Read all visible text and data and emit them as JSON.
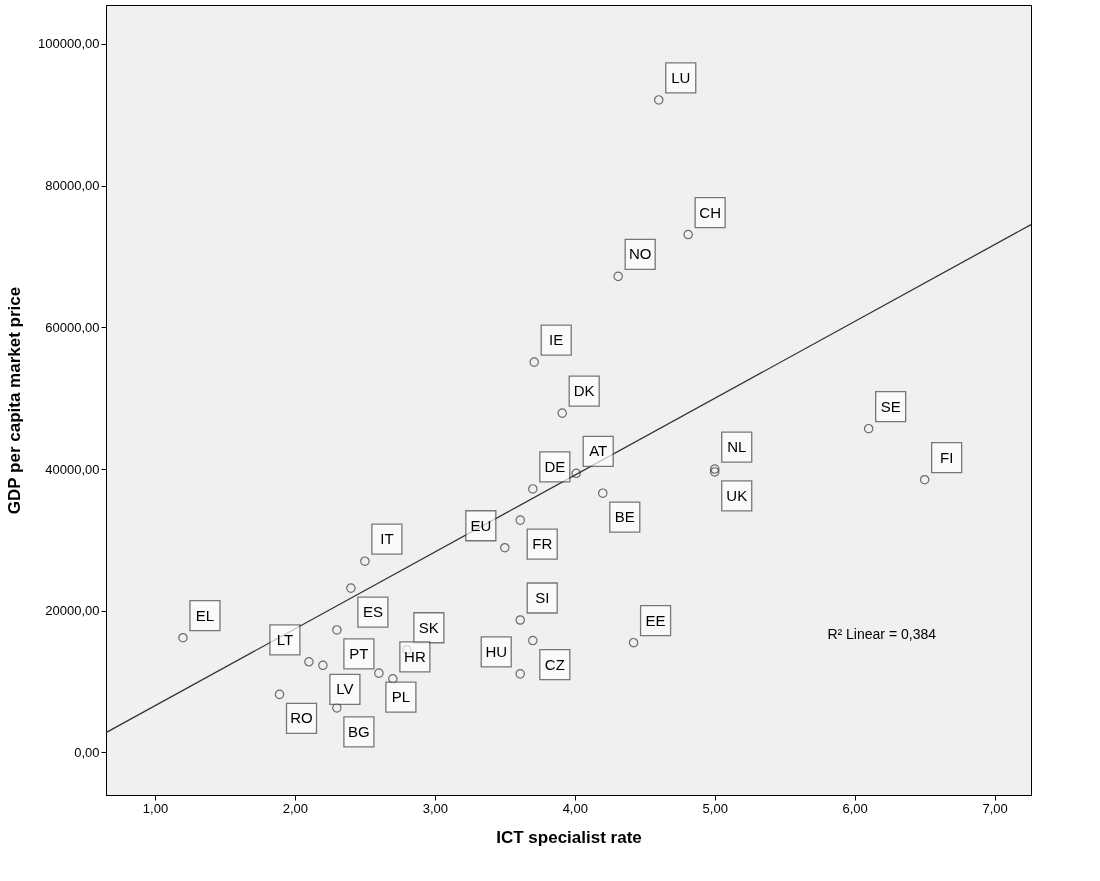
{
  "chart_data": {
    "type": "scatter",
    "xlabel": "ICT specialist rate",
    "ylabel": "GDP per capita market price",
    "xlim": [
      0.65,
      7.26
    ],
    "ylim": [
      -6000,
      105500
    ],
    "xticks": [
      {
        "value": 1,
        "label": "1,00"
      },
      {
        "value": 2,
        "label": "2,00"
      },
      {
        "value": 3,
        "label": "3,00"
      },
      {
        "value": 4,
        "label": "4,00"
      },
      {
        "value": 5,
        "label": "5,00"
      },
      {
        "value": 6,
        "label": "6,00"
      },
      {
        "value": 7,
        "label": "7,00"
      }
    ],
    "yticks": [
      {
        "value": 0,
        "label": "0,00"
      },
      {
        "value": 20000,
        "label": "20000,00"
      },
      {
        "value": 40000,
        "label": "40000,00"
      },
      {
        "value": 60000,
        "label": "60000,00"
      },
      {
        "value": 80000,
        "label": "80000,00"
      },
      {
        "value": 100000,
        "label": "100000,00"
      }
    ],
    "grid": false,
    "marker": "circle",
    "series": [
      {
        "type": "scatter",
        "color": "#333333",
        "x": [
          4.6,
          4.81,
          4.31,
          3.71,
          3.91,
          4.01,
          3.7,
          4.2,
          3.61,
          3.5,
          2.5,
          2.4,
          2.3,
          1.2,
          2.8,
          3.61,
          3.7,
          4.42,
          2.1,
          2.2,
          1.89,
          2.6,
          2.7,
          2.3,
          3.61,
          5.0,
          5.0,
          6.1,
          6.5
        ],
        "values": [
          92100,
          73100,
          67200,
          55100,
          47900,
          39400,
          37200,
          36600,
          32800,
          28900,
          27000,
          23200,
          17300,
          16200,
          14500,
          18700,
          15800,
          15500,
          12800,
          12300,
          8200,
          11200,
          10400,
          6300,
          11100,
          40000,
          39600,
          45700,
          38500
        ]
      },
      {
        "type": "line",
        "marker": "none",
        "color": "#333333",
        "x": [
          0.65,
          7.26
        ],
        "values": [
          2800,
          74500
        ]
      }
    ],
    "annotations": [
      {
        "text": "LU",
        "x": 4.6,
        "y": 92100
      },
      {
        "text": "CH",
        "x": 4.81,
        "y": 73100
      },
      {
        "text": "NO",
        "x": 4.31,
        "y": 67200
      },
      {
        "text": "IE",
        "x": 3.71,
        "y": 55100
      },
      {
        "text": "DK",
        "x": 3.91,
        "y": 47900
      },
      {
        "text": "AT",
        "x": 4.01,
        "y": 39400
      },
      {
        "text": "DE",
        "x": 3.7,
        "y": 37200
      },
      {
        "text": "BE",
        "x": 4.2,
        "y": 36600
      },
      {
        "text": "FR",
        "x": 3.61,
        "y": 32800
      },
      {
        "text": "EU",
        "x": 3.5,
        "y": 28900
      },
      {
        "text": "IT",
        "x": 2.5,
        "y": 27000
      },
      {
        "text": "ES",
        "x": 2.4,
        "y": 23200
      },
      {
        "text": "PT",
        "x": 2.3,
        "y": 17300
      },
      {
        "text": "EL",
        "x": 1.2,
        "y": 16200
      },
      {
        "text": "SK",
        "x": 2.8,
        "y": 14500
      },
      {
        "text": "SI",
        "x": 3.61,
        "y": 18700
      },
      {
        "text": "CZ",
        "x": 3.7,
        "y": 15800
      },
      {
        "text": "EE",
        "x": 4.42,
        "y": 15500
      },
      {
        "text": "LT",
        "x": 2.1,
        "y": 12800
      },
      {
        "text": "LV",
        "x": 2.2,
        "y": 12300
      },
      {
        "text": "RO",
        "x": 1.89,
        "y": 8200
      },
      {
        "text": "PL",
        "x": 2.6,
        "y": 11200
      },
      {
        "text": "HR",
        "x": 2.7,
        "y": 10400
      },
      {
        "text": "BG",
        "x": 2.3,
        "y": 6300
      },
      {
        "text": "HU",
        "x": 3.61,
        "y": 11100
      },
      {
        "text": "NL",
        "x": 5.0,
        "y": 40000
      },
      {
        "text": "UK",
        "x": 5.0,
        "y": 39600
      },
      {
        "text": "SE",
        "x": 6.1,
        "y": 45700
      },
      {
        "text": "FI",
        "x": 6.5,
        "y": 38500
      },
      "R² Linear = 0,384"
    ]
  }
}
